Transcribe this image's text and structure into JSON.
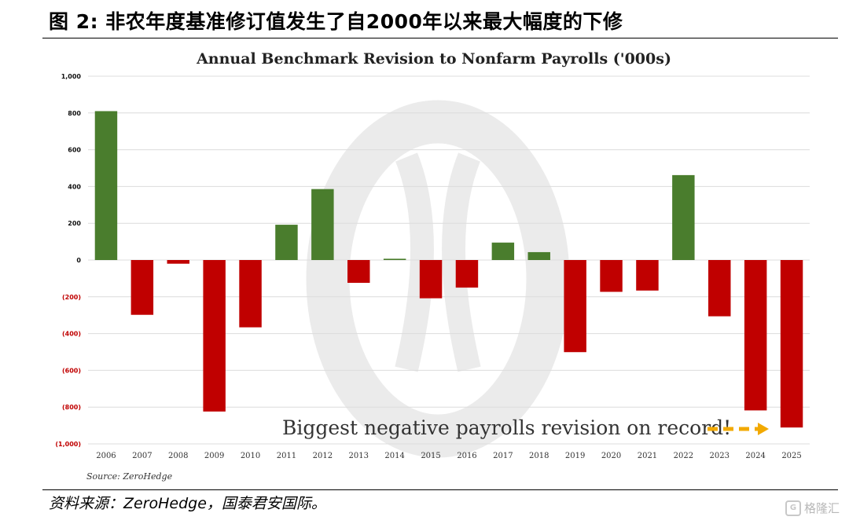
{
  "figure": {
    "heading": "图 2:  非农年度基准修订值发生了自2000年以来最大幅度的下修",
    "footer": "资料来源：ZeroHedge，国泰君安国际。",
    "watermark": "格隆汇",
    "watermark_icon": "G"
  },
  "chart_data": {
    "type": "bar",
    "title": "Annual Benchmark Revision to Nonfarm Payrolls ('000s)",
    "xlabel": "",
    "ylabel": "",
    "categories": [
      "2006",
      "2007",
      "2008",
      "2009",
      "2010",
      "2011",
      "2012",
      "2013",
      "2014",
      "2015",
      "2016",
      "2017",
      "2018",
      "2019",
      "2020",
      "2021",
      "2022",
      "2023",
      "2024",
      "2025"
    ],
    "values": [
      810,
      -298,
      -20,
      -824,
      -366,
      192,
      386,
      -124,
      7,
      -208,
      -150,
      95,
      43,
      -501,
      -173,
      -166,
      462,
      -306,
      -818,
      -911
    ],
    "ylim": [
      -1000,
      1000
    ],
    "yticks": [
      1000,
      800,
      600,
      400,
      200,
      0,
      -200,
      -400,
      -600,
      -800,
      -1000
    ],
    "ytick_labels": [
      "1,000",
      "800",
      "600",
      "400",
      "200",
      "0",
      "(200)",
      "(400)",
      "(600)",
      "(800)",
      "(1,000)"
    ],
    "grid": true,
    "colors": {
      "positive": "#4a7d2d",
      "negative": "#c00000",
      "positive_tick": "#111111",
      "negative_tick": "#c00000",
      "arrow": "#f2a900",
      "grid": "#dcdcdc"
    },
    "annotation": "Biggest negative payrolls revision on record!",
    "source_note": "Source: ZeroHedge"
  }
}
